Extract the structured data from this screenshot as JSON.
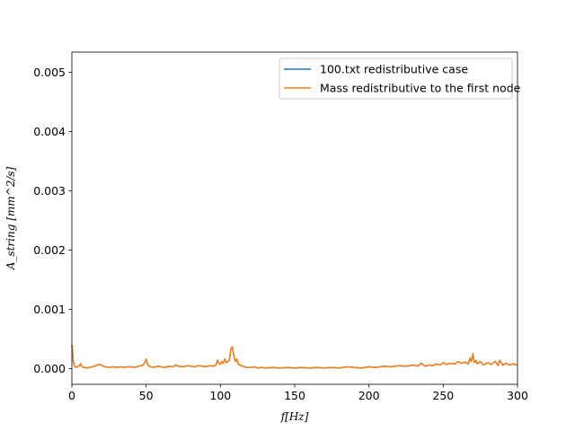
{
  "chart_data": {
    "type": "line",
    "title": "",
    "xlabel": "f[Hz]",
    "ylabel": "A_string [mm^2/s]",
    "xlim": [
      0,
      300
    ],
    "ylim": [
      -0.000265,
      0.00534
    ],
    "xticks": [
      0,
      50,
      100,
      150,
      200,
      250,
      300
    ],
    "xtick_labels": [
      "0",
      "50",
      "100",
      "150",
      "200",
      "250",
      "300"
    ],
    "yticks": [
      0.0,
      0.001,
      0.002,
      0.003,
      0.004,
      0.005
    ],
    "ytick_labels": [
      "0.000",
      "0.001",
      "0.002",
      "0.003",
      "0.004",
      "0.005"
    ],
    "grid": false,
    "legend_position": "top-right",
    "series": [
      {
        "name": "100.txt redistributive case",
        "color": "#1f77b4",
        "x": [
          0,
          1,
          2,
          3,
          5,
          6,
          7,
          8,
          10,
          12,
          15,
          18,
          20,
          22,
          25,
          28,
          30,
          33,
          35,
          38,
          40,
          42,
          45,
          48,
          49,
          50,
          51,
          52,
          55,
          58,
          60,
          63,
          65,
          68,
          70,
          72,
          75,
          78,
          80,
          83,
          85,
          88,
          90,
          93,
          95,
          97,
          98,
          99,
          100,
          101,
          102,
          103,
          104,
          105,
          106,
          107,
          108,
          109,
          110,
          111,
          112,
          113,
          115,
          118,
          120,
          123,
          125,
          128,
          130,
          135,
          140,
          145,
          150,
          155,
          160,
          165,
          170,
          175,
          180,
          185,
          190,
          195,
          200,
          205,
          210,
          215,
          220,
          225,
          230,
          233,
          235,
          238,
          240,
          243,
          245,
          248,
          250,
          252,
          255,
          258,
          260,
          262,
          265,
          267,
          268,
          269,
          270,
          271,
          272,
          273,
          275,
          277,
          280,
          282,
          285,
          287,
          288,
          290,
          292,
          295,
          297,
          300
        ],
        "y": [
          0.0004,
          0.00012,
          3e-05,
          2e-05,
          5e-05,
          8e-05,
          3e-05,
          2e-05,
          1e-05,
          2e-05,
          4e-05,
          7e-05,
          6e-05,
          3e-05,
          2e-05,
          3e-05,
          2e-05,
          3e-05,
          2e-05,
          3e-05,
          3e-05,
          2e-05,
          4e-05,
          6e-05,
          0.0001,
          0.00016,
          7e-05,
          4e-05,
          2e-05,
          4e-05,
          3e-05,
          2e-05,
          4e-05,
          3e-05,
          6e-05,
          4e-05,
          3e-05,
          5e-05,
          4e-05,
          3e-05,
          5e-05,
          4e-05,
          3e-05,
          5e-05,
          4e-05,
          6e-05,
          0.00014,
          9e-05,
          7e-05,
          0.00012,
          9e-05,
          0.00016,
          0.0001,
          0.00012,
          0.00014,
          0.00032,
          0.00037,
          0.00022,
          0.00012,
          0.00016,
          8e-05,
          6e-05,
          4e-05,
          2e-05,
          2e-05,
          3e-05,
          1e-05,
          2e-05,
          1e-05,
          2e-05,
          1e-05,
          2e-05,
          1e-05,
          2e-05,
          1e-05,
          2e-05,
          1e-05,
          2e-05,
          1e-05,
          3e-05,
          2e-05,
          1e-05,
          3e-05,
          2e-05,
          4e-05,
          3e-05,
          5e-05,
          4e-05,
          6e-05,
          4e-05,
          9e-05,
          4e-05,
          6e-05,
          5e-05,
          8e-05,
          6e-05,
          0.0001,
          7e-05,
          9e-05,
          8e-05,
          0.00012,
          9e-05,
          0.00011,
          8e-05,
          0.00018,
          0.00012,
          0.00025,
          0.0001,
          0.00014,
          8e-05,
          0.00012,
          6e-05,
          0.0001,
          7e-05,
          0.00012,
          5e-05,
          0.00014,
          6e-05,
          9e-05,
          6e-05,
          8e-05,
          6e-05
        ]
      },
      {
        "name": "Mass redistributive to the first node",
        "color": "#ff7f0e",
        "x": [
          0,
          1,
          2,
          3,
          5,
          6,
          7,
          8,
          10,
          12,
          15,
          18,
          20,
          22,
          25,
          28,
          30,
          33,
          35,
          38,
          40,
          42,
          45,
          48,
          49,
          50,
          51,
          52,
          55,
          58,
          60,
          63,
          65,
          68,
          70,
          72,
          75,
          78,
          80,
          83,
          85,
          88,
          90,
          93,
          95,
          97,
          98,
          99,
          100,
          101,
          102,
          103,
          104,
          105,
          106,
          107,
          108,
          109,
          110,
          111,
          112,
          113,
          115,
          118,
          120,
          123,
          125,
          128,
          130,
          135,
          140,
          145,
          150,
          155,
          160,
          165,
          170,
          175,
          180,
          185,
          190,
          195,
          200,
          205,
          210,
          215,
          220,
          225,
          230,
          233,
          235,
          238,
          240,
          243,
          245,
          248,
          250,
          252,
          255,
          258,
          260,
          262,
          265,
          267,
          268,
          269,
          270,
          271,
          272,
          273,
          275,
          277,
          280,
          282,
          285,
          287,
          288,
          290,
          292,
          295,
          297,
          300
        ],
        "y": [
          0.0004,
          0.00012,
          3e-05,
          2e-05,
          5e-05,
          8e-05,
          3e-05,
          2e-05,
          1e-05,
          2e-05,
          4e-05,
          7e-05,
          6e-05,
          3e-05,
          2e-05,
          3e-05,
          2e-05,
          3e-05,
          2e-05,
          3e-05,
          3e-05,
          2e-05,
          4e-05,
          6e-05,
          0.0001,
          0.00016,
          7e-05,
          4e-05,
          2e-05,
          4e-05,
          3e-05,
          2e-05,
          4e-05,
          3e-05,
          6e-05,
          4e-05,
          3e-05,
          5e-05,
          4e-05,
          3e-05,
          5e-05,
          4e-05,
          3e-05,
          5e-05,
          4e-05,
          6e-05,
          0.00014,
          9e-05,
          7e-05,
          0.00012,
          9e-05,
          0.00016,
          0.0001,
          0.00012,
          0.00014,
          0.00032,
          0.00037,
          0.00022,
          0.00012,
          0.00016,
          8e-05,
          6e-05,
          4e-05,
          2e-05,
          2e-05,
          3e-05,
          1e-05,
          2e-05,
          1e-05,
          2e-05,
          1e-05,
          2e-05,
          1e-05,
          2e-05,
          1e-05,
          2e-05,
          1e-05,
          2e-05,
          1e-05,
          3e-05,
          2e-05,
          1e-05,
          3e-05,
          2e-05,
          4e-05,
          3e-05,
          5e-05,
          4e-05,
          6e-05,
          4e-05,
          9e-05,
          4e-05,
          6e-05,
          5e-05,
          8e-05,
          6e-05,
          0.0001,
          7e-05,
          9e-05,
          8e-05,
          0.00012,
          9e-05,
          0.00011,
          8e-05,
          0.00018,
          0.00012,
          0.00025,
          0.0001,
          0.00014,
          8e-05,
          0.00012,
          6e-05,
          0.0001,
          7e-05,
          0.00012,
          5e-05,
          0.00014,
          6e-05,
          9e-05,
          6e-05,
          8e-05,
          6e-05
        ]
      }
    ]
  }
}
